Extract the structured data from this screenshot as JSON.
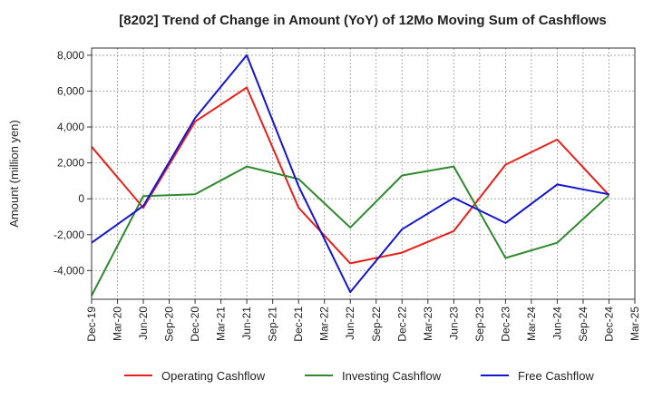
{
  "chart_data": {
    "type": "line",
    "title": "[8202]  Trend of Change in Amount (YoY) of 12Mo Moving Sum of Cashflows",
    "xlabel": "",
    "ylabel": "Amount (million yen)",
    "ylim": [
      -5600,
      8400
    ],
    "yticks": [
      -4000,
      -2000,
      0,
      2000,
      4000,
      6000,
      8000
    ],
    "ytick_labels": [
      "-4,000",
      "-2,000",
      "0",
      "2,000",
      "4,000",
      "6,000",
      "8,000"
    ],
    "categories": [
      "Dec-19",
      "Mar-20",
      "Jun-20",
      "Sep-20",
      "Dec-20",
      "Mar-21",
      "Jun-21",
      "Sep-21",
      "Dec-21",
      "Mar-22",
      "Jun-22",
      "Sep-22",
      "Dec-22",
      "Mar-23",
      "Jun-23",
      "Sep-23",
      "Dec-23",
      "Mar-24",
      "Jun-24",
      "Sep-24",
      "Dec-24",
      "Mar-25"
    ],
    "grid": true,
    "legend_position": "bottom",
    "series": [
      {
        "name": "Operating Cashflow",
        "color": "#e8201a",
        "points": [
          [
            0,
            2900
          ],
          [
            2,
            -500
          ],
          [
            4,
            4300
          ],
          [
            6,
            6200
          ],
          [
            8,
            -500
          ],
          [
            10,
            -3600
          ],
          [
            12,
            -3000
          ],
          [
            14,
            -1800
          ],
          [
            16,
            1900
          ],
          [
            18,
            3300
          ],
          [
            20,
            200
          ]
        ]
      },
      {
        "name": "Investing Cashflow",
        "color": "#2f8a2f",
        "points": [
          [
            0,
            -5400
          ],
          [
            2,
            150
          ],
          [
            4,
            250
          ],
          [
            6,
            1800
          ],
          [
            8,
            1100
          ],
          [
            10,
            -1600
          ],
          [
            12,
            1300
          ],
          [
            14,
            1800
          ],
          [
            16,
            -3300
          ],
          [
            18,
            -2450
          ],
          [
            20,
            200
          ]
        ]
      },
      {
        "name": "Free Cashflow",
        "color": "#1414d2",
        "points": [
          [
            0,
            -2450
          ],
          [
            2,
            -400
          ],
          [
            4,
            4500
          ],
          [
            6,
            8000
          ],
          [
            8,
            700
          ],
          [
            10,
            -5200
          ],
          [
            12,
            -1700
          ],
          [
            14,
            50
          ],
          [
            16,
            -1350
          ],
          [
            18,
            800
          ],
          [
            20,
            250
          ]
        ]
      }
    ]
  }
}
